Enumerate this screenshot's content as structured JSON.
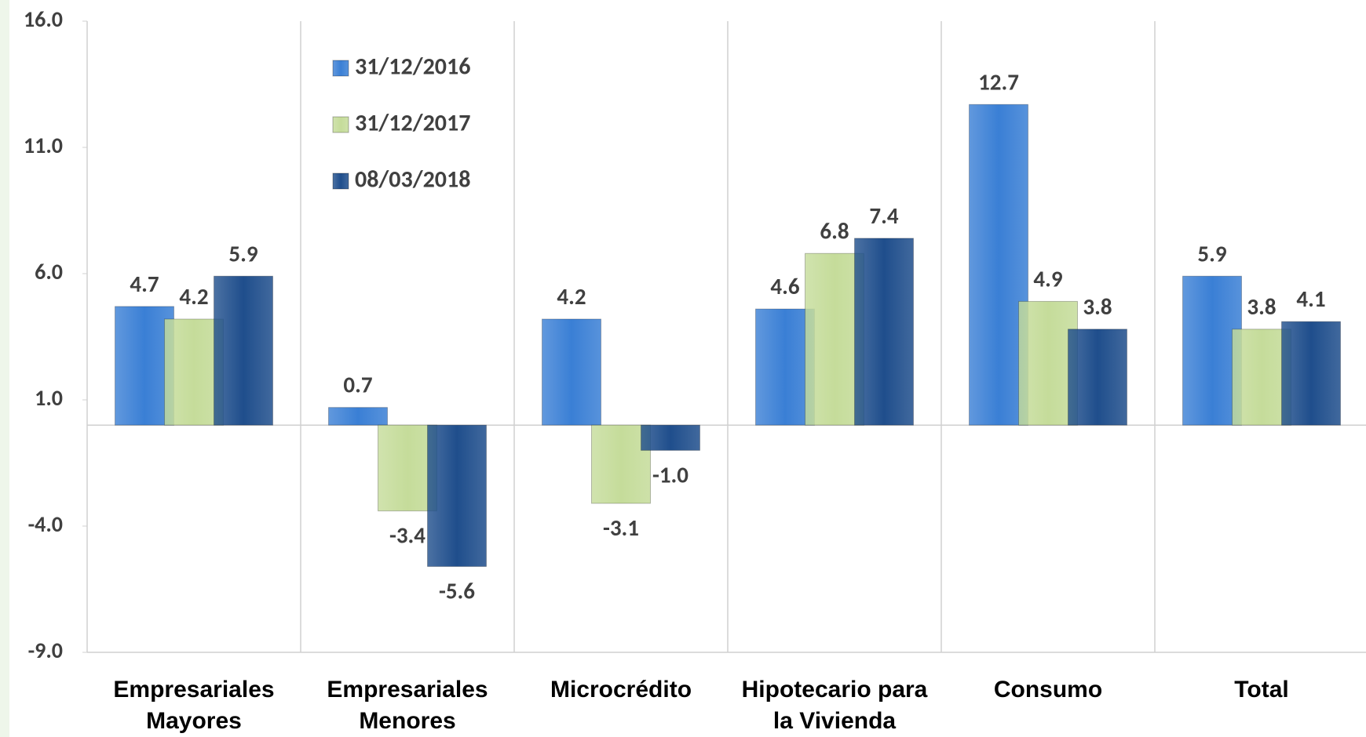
{
  "chart_data": {
    "type": "bar",
    "categories": [
      "Empresariales Mayores",
      "Empresariales Menores",
      "Microcrédito",
      "Hipotecario para la Vivienda",
      "Consumo",
      "Total"
    ],
    "series": [
      {
        "name": "31/12/2016",
        "color": "#3a7fd5",
        "values": [
          4.7,
          0.7,
          4.2,
          4.6,
          12.7,
          5.9
        ],
        "value_labels": [
          "4.7",
          "0.7",
          "4.2",
          "4.6",
          "12.7",
          "5.9"
        ]
      },
      {
        "name": "31/12/2017",
        "color": "#c5dc9a",
        "values": [
          4.2,
          -3.4,
          -3.1,
          6.8,
          4.9,
          3.8
        ],
        "value_labels": [
          "4.2",
          "-3.4",
          "-3.1",
          "6.8",
          "4.9",
          "3.8"
        ]
      },
      {
        "name": "08/03/2018",
        "color": "#1f4e8c",
        "values": [
          5.9,
          -5.6,
          -1.0,
          7.4,
          3.8,
          4.1
        ],
        "value_labels": [
          "5.9",
          "-5.6",
          "-1.0",
          "7.4",
          "3.8",
          "4.1"
        ]
      }
    ],
    "ylim": [
      -9,
      16
    ],
    "yticks": [
      {
        "value": -9,
        "label": "-9.0"
      },
      {
        "value": -4,
        "label": "-4.0"
      },
      {
        "value": 1,
        "label": "1.0"
      },
      {
        "value": 6,
        "label": "6.0"
      },
      {
        "value": 11,
        "label": "11.0"
      },
      {
        "value": 16,
        "label": "16.0"
      }
    ],
    "grid": false
  }
}
